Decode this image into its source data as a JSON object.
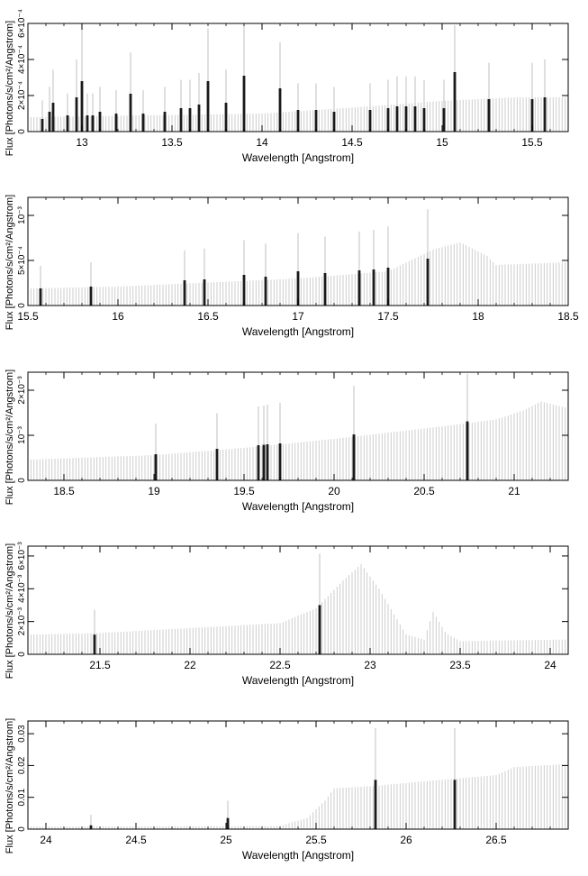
{
  "chart_data": [
    {
      "type": "line",
      "xlabel": "Wavelength [Angstrom]",
      "ylabel": "Flux [Photons/s/cm²/Angstrom]",
      "xlim": [
        12.7,
        15.7
      ],
      "ylim": [
        0,
        0.0006
      ],
      "xticks": [
        13,
        13.5,
        14,
        14.5,
        15,
        15.5
      ],
      "xtick_labels": [
        "13",
        "13.5",
        "14",
        "14.5",
        "15",
        "15.5"
      ],
      "yticks": [
        0,
        0.0002,
        0.0004,
        0.0006
      ],
      "ytick_labels": [
        "0",
        "2×10⁻⁴",
        "4×10⁻⁴",
        "6×10⁻⁴"
      ],
      "continuum": {
        "x": [
          12.7,
          14.0,
          14.6,
          15.0,
          15.4,
          15.7
        ],
        "y": [
          8e-05,
          0.0001,
          0.00014,
          0.00017,
          0.00019,
          0.00019
        ]
      },
      "lines": [
        {
          "x": 12.78,
          "y": 7e-05
        },
        {
          "x": 12.82,
          "y": 0.00011
        },
        {
          "x": 12.84,
          "y": 0.00016
        },
        {
          "x": 12.92,
          "y": 9e-05
        },
        {
          "x": 12.97,
          "y": 0.00019
        },
        {
          "x": 13.0,
          "y": 0.00028
        },
        {
          "x": 13.03,
          "y": 9e-05
        },
        {
          "x": 13.06,
          "y": 9e-05
        },
        {
          "x": 13.1,
          "y": 0.00011
        },
        {
          "x": 13.19,
          "y": 0.0001
        },
        {
          "x": 13.27,
          "y": 0.00021
        },
        {
          "x": 13.34,
          "y": 0.0001
        },
        {
          "x": 13.46,
          "y": 0.00011
        },
        {
          "x": 13.55,
          "y": 0.00013
        },
        {
          "x": 13.6,
          "y": 0.00013
        },
        {
          "x": 13.65,
          "y": 0.00015
        },
        {
          "x": 13.7,
          "y": 0.00028
        },
        {
          "x": 13.8,
          "y": 0.00016
        },
        {
          "x": 13.9,
          "y": 0.00031
        },
        {
          "x": 14.1,
          "y": 0.00024
        },
        {
          "x": 14.2,
          "y": 0.00012
        },
        {
          "x": 14.3,
          "y": 0.00012
        },
        {
          "x": 14.4,
          "y": 0.00011
        },
        {
          "x": 14.6,
          "y": 0.00012
        },
        {
          "x": 14.7,
          "y": 0.00013
        },
        {
          "x": 14.75,
          "y": 0.00014
        },
        {
          "x": 14.8,
          "y": 0.00014
        },
        {
          "x": 14.85,
          "y": 0.00014
        },
        {
          "x": 14.9,
          "y": 0.00013
        },
        {
          "x": 15.01,
          "y": 0.00013
        },
        {
          "x": 15.07,
          "y": 0.00033
        },
        {
          "x": 15.26,
          "y": 0.00018
        },
        {
          "x": 15.5,
          "y": 0.00018
        },
        {
          "x": 15.57,
          "y": 0.00019
        }
      ]
    },
    {
      "type": "line",
      "xlabel": "Wavelength [Angstrom]",
      "ylabel": "Flux [Photons/s/cm²/Angstrom]",
      "xlim": [
        15.5,
        18.5
      ],
      "ylim": [
        0,
        0.0012
      ],
      "xticks": [
        15.5,
        16,
        16.5,
        17,
        17.5,
        18,
        18.5
      ],
      "xtick_labels": [
        "15.5",
        "16",
        "16.5",
        "17",
        "17.5",
        "18",
        "18.5"
      ],
      "yticks": [
        0,
        0.0005,
        0.001
      ],
      "ytick_labels": [
        "0",
        "5×10⁻⁴",
        "10⁻³"
      ],
      "continuum": {
        "x": [
          15.5,
          16.0,
          17.0,
          17.5,
          17.75,
          17.9,
          18.05,
          18.1,
          18.5
        ],
        "y": [
          0.00019,
          0.00021,
          0.0003,
          0.00038,
          0.00062,
          0.0007,
          0.00055,
          0.00045,
          0.00048
        ]
      },
      "lines": [
        {
          "x": 15.57,
          "y": 0.00019
        },
        {
          "x": 15.85,
          "y": 0.00021
        },
        {
          "x": 16.37,
          "y": 0.00028
        },
        {
          "x": 16.48,
          "y": 0.00029
        },
        {
          "x": 16.7,
          "y": 0.00034
        },
        {
          "x": 16.82,
          "y": 0.00032
        },
        {
          "x": 17.0,
          "y": 0.00038
        },
        {
          "x": 17.15,
          "y": 0.00036
        },
        {
          "x": 17.34,
          "y": 0.00039
        },
        {
          "x": 17.42,
          "y": 0.0004
        },
        {
          "x": 17.5,
          "y": 0.00042
        },
        {
          "x": 17.72,
          "y": 0.00052
        }
      ]
    },
    {
      "type": "line",
      "xlabel": "Wavelength [Angstrom]",
      "ylabel": "Flux [Photons/s/cm²/Angstrom]",
      "xlim": [
        18.3,
        21.3
      ],
      "ylim": [
        0,
        0.0024
      ],
      "xticks": [
        18.5,
        19,
        19.5,
        20,
        20.5,
        21
      ],
      "xtick_labels": [
        "18.5",
        "19",
        "19.5",
        "20",
        "20.5",
        "21"
      ],
      "yticks": [
        0,
        0.001,
        0.002
      ],
      "ytick_labels": [
        "0",
        "10⁻³",
        "2×10⁻³"
      ],
      "continuum": {
        "x": [
          18.3,
          19.0,
          19.5,
          20.0,
          20.5,
          20.9,
          21.05,
          21.15,
          21.3
        ],
        "y": [
          0.00046,
          0.00056,
          0.00072,
          0.00092,
          0.00115,
          0.00135,
          0.00155,
          0.00175,
          0.0016
        ]
      },
      "lines": [
        {
          "x": 19.01,
          "y": 0.00058
        },
        {
          "x": 19.35,
          "y": 0.0007
        },
        {
          "x": 19.58,
          "y": 0.00078
        },
        {
          "x": 19.61,
          "y": 0.00079
        },
        {
          "x": 19.63,
          "y": 0.0008
        },
        {
          "x": 19.7,
          "y": 0.00082
        },
        {
          "x": 20.11,
          "y": 0.00102
        },
        {
          "x": 20.74,
          "y": 0.00131
        }
      ]
    },
    {
      "type": "line",
      "xlabel": "Wavelength [Angstrom]",
      "ylabel": "Flux [Photons/s/cm²/Angstrom]",
      "xlim": [
        21.1,
        24.1
      ],
      "ylim": [
        0,
        0.0066
      ],
      "xticks": [
        21.5,
        22,
        22.5,
        23,
        23.5,
        24
      ],
      "xtick_labels": [
        "21.5",
        "22",
        "22.5",
        "23",
        "23.5",
        "24"
      ],
      "yticks": [
        0,
        0.002,
        0.004,
        0.006
      ],
      "ytick_labels": [
        "0",
        "2×10⁻³",
        "4×10⁻³",
        "6×10⁻³"
      ],
      "continuum": {
        "x": [
          21.1,
          21.5,
          22.0,
          22.5,
          22.7,
          22.85,
          22.95,
          23.05,
          23.2,
          23.3,
          23.35,
          23.42,
          23.5,
          24.1
        ],
        "y": [
          0.0012,
          0.0013,
          0.0016,
          0.0019,
          0.0028,
          0.0045,
          0.0055,
          0.004,
          0.0012,
          0.0009,
          0.0026,
          0.0013,
          0.0008,
          0.0009
        ]
      },
      "lines": [
        {
          "x": 21.47,
          "y": 0.0012
        },
        {
          "x": 22.72,
          "y": 0.003
        }
      ]
    },
    {
      "type": "line",
      "xlabel": "Wavelength [Angstrom]",
      "ylabel": "Flux [Photons/s/cm²/Angstrom]",
      "xlim": [
        23.9,
        26.9
      ],
      "ylim": [
        0,
        0.034
      ],
      "xticks": [
        24,
        24.5,
        25,
        25.5,
        26,
        26.5
      ],
      "xtick_labels": [
        "24",
        "24.5",
        "25",
        "25.5",
        "26",
        "26.5"
      ],
      "yticks": [
        0,
        0.01,
        0.02,
        0.03
      ],
      "ytick_labels": [
        "0",
        "0.01",
        "0.02",
        "0.03"
      ],
      "continuum": {
        "x": [
          23.9,
          25.3,
          25.45,
          25.55,
          25.6,
          25.8,
          26.0,
          26.5,
          26.6,
          26.9
        ],
        "y": [
          0.0008,
          0.001,
          0.0035,
          0.009,
          0.0128,
          0.0135,
          0.0145,
          0.017,
          0.0195,
          0.0205
        ]
      },
      "lines": [
        {
          "x": 24.25,
          "y": 0.0012
        },
        {
          "x": 25.01,
          "y": 0.0035
        },
        {
          "x": 25.83,
          "y": 0.0155
        },
        {
          "x": 26.27,
          "y": 0.0155
        }
      ]
    }
  ]
}
